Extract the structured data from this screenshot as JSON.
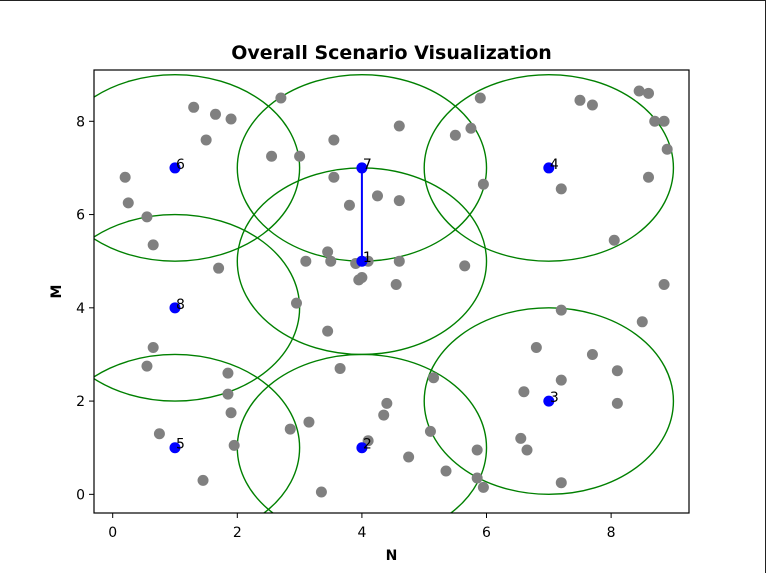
{
  "chart_data": {
    "type": "scatter",
    "title": "Overall Scenario Visualization",
    "xlabel": "N",
    "ylabel": "M",
    "xlim": [
      -0.3,
      9.25
    ],
    "ylim": [
      -0.4,
      9.1
    ],
    "xticks": [
      0,
      2,
      4,
      6,
      8
    ],
    "yticks": [
      0,
      2,
      4,
      6,
      8
    ],
    "grid": false,
    "colors": {
      "users": "#808080",
      "stations": "#0000ff",
      "coverage": "#008000",
      "link": "#0000ff",
      "axes": "#000000"
    },
    "coverage_radius": 2,
    "stations": [
      {
        "id": "1",
        "x": 4,
        "y": 5
      },
      {
        "id": "2",
        "x": 4,
        "y": 1
      },
      {
        "id": "3",
        "x": 7,
        "y": 2
      },
      {
        "id": "4",
        "x": 7,
        "y": 7
      },
      {
        "id": "5",
        "x": 1,
        "y": 1
      },
      {
        "id": "6",
        "x": 1,
        "y": 7
      },
      {
        "id": "7",
        "x": 4,
        "y": 7
      },
      {
        "id": "8",
        "x": 1,
        "y": 4
      }
    ],
    "links": [
      {
        "from": "7",
        "to": "1"
      }
    ],
    "users": [
      [
        1.3,
        8.3
      ],
      [
        1.65,
        8.15
      ],
      [
        1.9,
        8.05
      ],
      [
        2.7,
        8.5
      ],
      [
        1.5,
        7.6
      ],
      [
        0.2,
        6.8
      ],
      [
        0.25,
        6.25
      ],
      [
        0.55,
        5.95
      ],
      [
        0.65,
        5.35
      ],
      [
        1.7,
        4.85
      ],
      [
        0.65,
        3.15
      ],
      [
        0.55,
        2.75
      ],
      [
        1.85,
        2.6
      ],
      [
        1.85,
        2.15
      ],
      [
        1.9,
        1.75
      ],
      [
        0.75,
        1.3
      ],
      [
        1.95,
        1.05
      ],
      [
        1.45,
        0.3
      ],
      [
        2.55,
        7.25
      ],
      [
        3.0,
        7.25
      ],
      [
        3.55,
        7.6
      ],
      [
        3.55,
        6.8
      ],
      [
        3.8,
        6.2
      ],
      [
        4.25,
        6.4
      ],
      [
        4.6,
        7.9
      ],
      [
        4.6,
        6.3
      ],
      [
        3.45,
        5.2
      ],
      [
        3.1,
        5.0
      ],
      [
        3.5,
        5.0
      ],
      [
        3.9,
        4.95
      ],
      [
        4.1,
        5.0
      ],
      [
        4.6,
        5.0
      ],
      [
        3.95,
        4.6
      ],
      [
        4.0,
        4.65
      ],
      [
        4.55,
        4.5
      ],
      [
        2.95,
        4.1
      ],
      [
        3.45,
        3.5
      ],
      [
        3.65,
        2.7
      ],
      [
        4.4,
        1.95
      ],
      [
        4.35,
        1.7
      ],
      [
        4.1,
        1.15
      ],
      [
        3.15,
        1.55
      ],
      [
        2.85,
        1.4
      ],
      [
        4.75,
        0.8
      ],
      [
        3.35,
        0.05
      ],
      [
        5.15,
        2.5
      ],
      [
        5.1,
        1.35
      ],
      [
        5.85,
        0.95
      ],
      [
        5.35,
        0.5
      ],
      [
        5.85,
        0.35
      ],
      [
        5.95,
        0.15
      ],
      [
        5.5,
        7.7
      ],
      [
        5.75,
        7.85
      ],
      [
        5.9,
        8.5
      ],
      [
        5.95,
        6.65
      ],
      [
        5.65,
        4.9
      ],
      [
        6.8,
        3.15
      ],
      [
        6.6,
        2.2
      ],
      [
        6.55,
        1.2
      ],
      [
        6.65,
        0.95
      ],
      [
        7.2,
        3.95
      ],
      [
        7.2,
        2.45
      ],
      [
        7.7,
        3.0
      ],
      [
        8.1,
        2.65
      ],
      [
        8.1,
        1.95
      ],
      [
        7.2,
        0.25
      ],
      [
        7.5,
        8.45
      ],
      [
        7.7,
        8.35
      ],
      [
        8.45,
        8.65
      ],
      [
        8.6,
        8.6
      ],
      [
        8.7,
        8.0
      ],
      [
        8.85,
        8.0
      ],
      [
        8.9,
        7.4
      ],
      [
        8.6,
        6.8
      ],
      [
        7.2,
        6.55
      ],
      [
        8.05,
        5.45
      ],
      [
        8.85,
        4.5
      ],
      [
        8.5,
        3.7
      ]
    ]
  }
}
